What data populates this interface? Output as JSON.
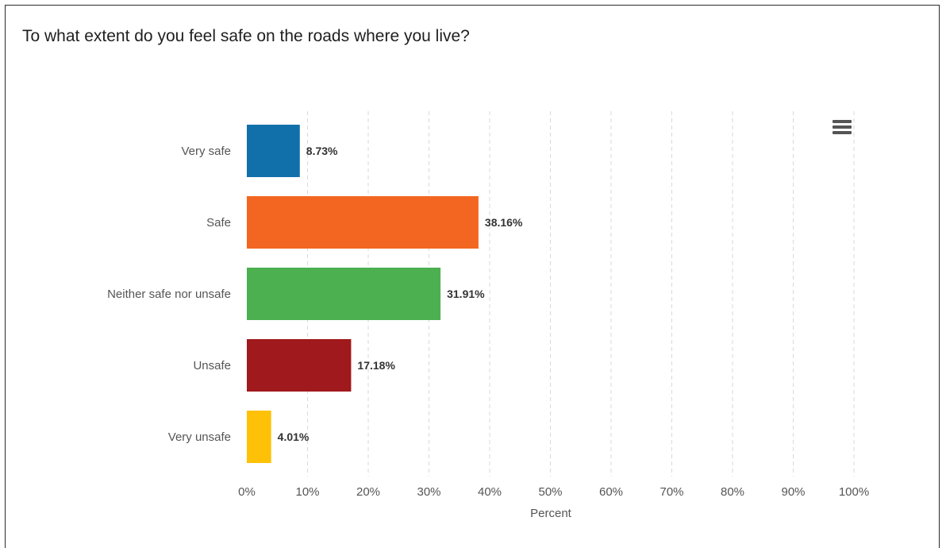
{
  "chart_data": {
    "type": "bar",
    "orientation": "horizontal",
    "title": "To what extent do you feel safe on the roads where you live?",
    "xlabel": "Percent",
    "ylabel": "",
    "categories": [
      "Very safe",
      "Safe",
      "Neither safe nor unsafe",
      "Unsafe",
      "Very unsafe"
    ],
    "values": [
      8.73,
      38.16,
      31.91,
      17.18,
      4.01
    ],
    "data_labels": [
      "8.73%",
      "38.16%",
      "31.91%",
      "17.18%",
      "4.01%"
    ],
    "colors": [
      "#1170aa",
      "#f36621",
      "#4caf50",
      "#a0191c",
      "#ffc107"
    ],
    "xlim": [
      0,
      100
    ],
    "xticks": [
      0,
      10,
      20,
      30,
      40,
      50,
      60,
      70,
      80,
      90,
      100
    ],
    "xtick_labels": [
      "0%",
      "10%",
      "20%",
      "30%",
      "40%",
      "50%",
      "60%",
      "70%",
      "80%",
      "90%",
      "100%"
    ],
    "grid": "vertical-dashed",
    "legend": "none"
  },
  "menu": {
    "icon": "hamburger-menu-icon"
  }
}
